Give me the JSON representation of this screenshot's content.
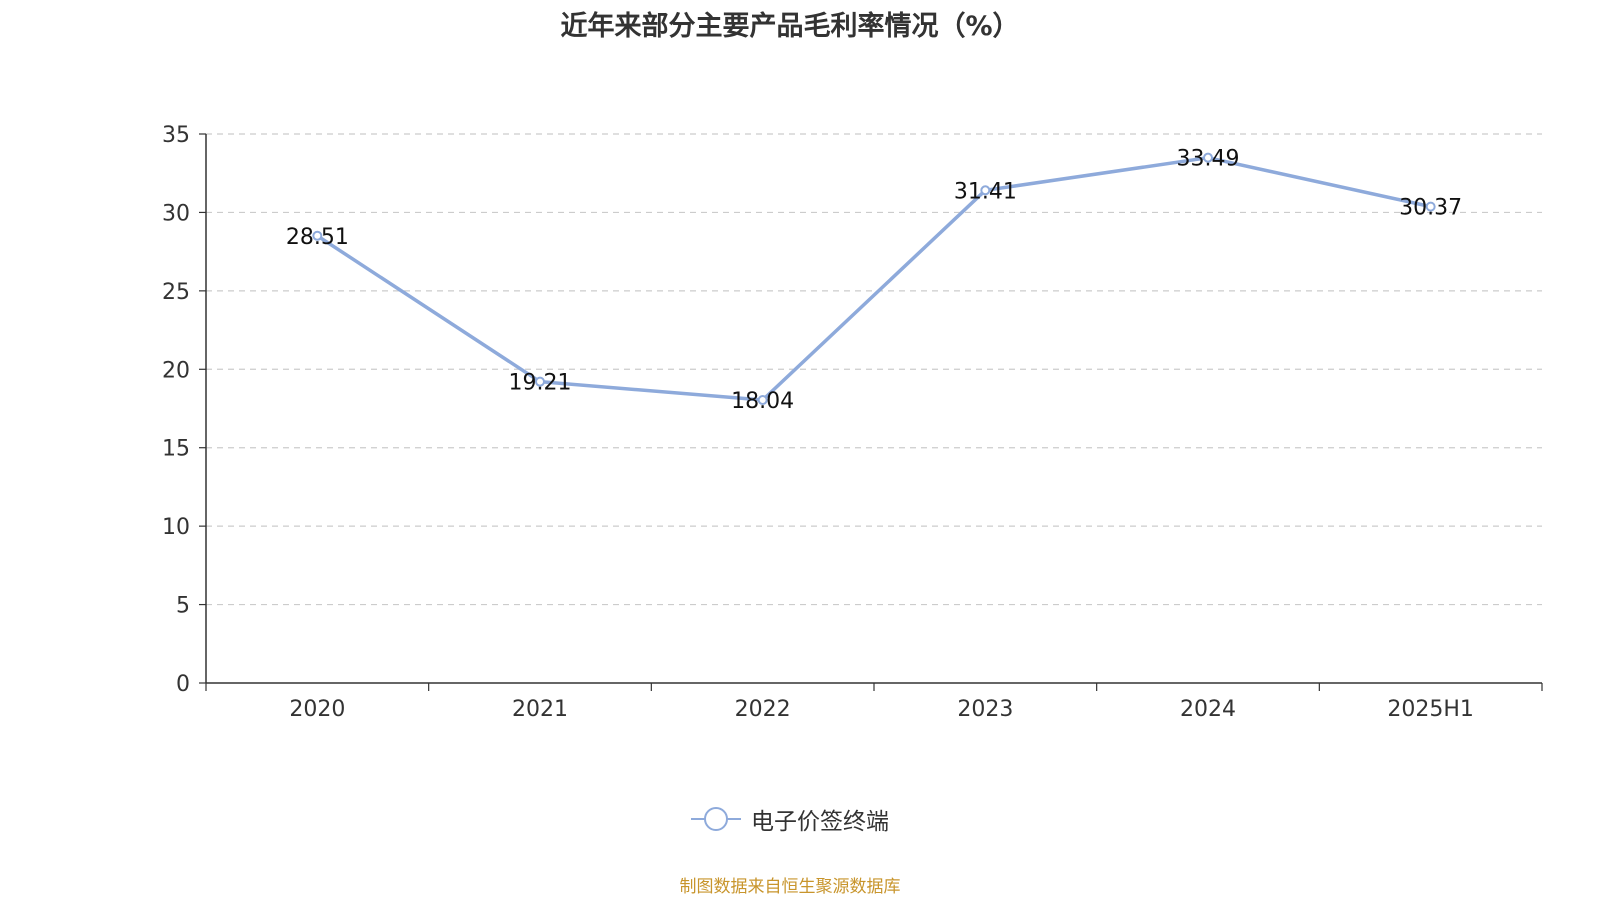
{
  "chart_data": {
    "type": "line",
    "title": "近年来部分主要产品毛利率情况（%）",
    "categories": [
      "2020",
      "2021",
      "2022",
      "2023",
      "2024",
      "2025H1"
    ],
    "series": [
      {
        "name": "电子价签终端",
        "values": [
          28.51,
          19.21,
          18.04,
          31.41,
          33.49,
          30.37
        ],
        "color": "#8eaadb"
      }
    ],
    "y_ticks": [
      "0",
      "5",
      "10",
      "15",
      "20",
      "25",
      "30",
      "35"
    ],
    "ylim": [
      0,
      35
    ],
    "xlabel": "",
    "ylabel": "",
    "grid": true,
    "legend_position": "bottom-center",
    "data_labels": [
      "28.51",
      "19.21",
      "18.04",
      "31.41",
      "33.49",
      "30.37"
    ]
  },
  "footer": {
    "source": "制图数据来自恒生聚源数据库",
    "source_color": "#c8952c"
  }
}
